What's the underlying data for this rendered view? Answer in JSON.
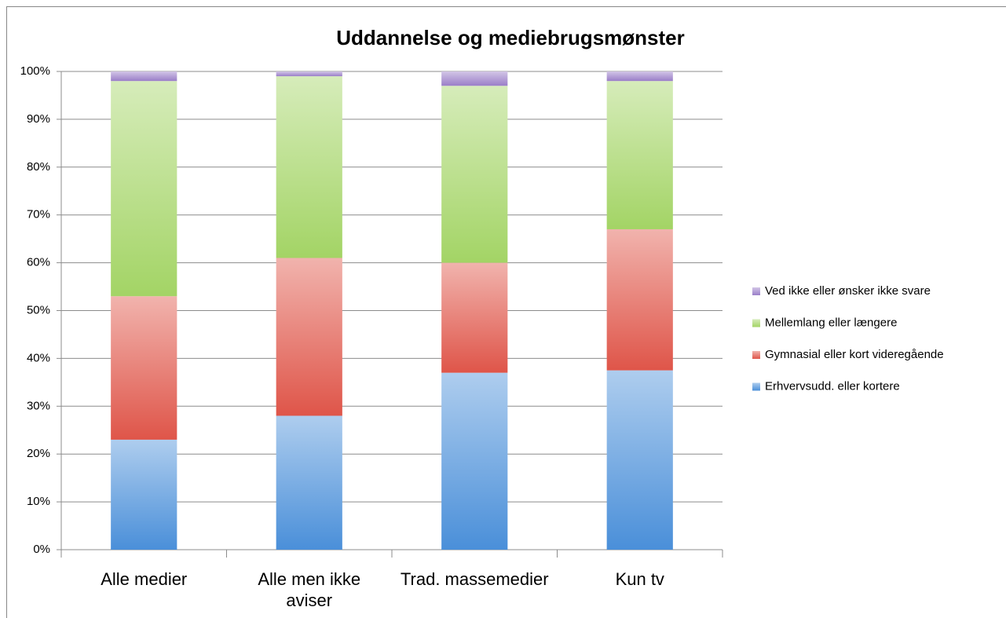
{
  "chart_data": {
    "type": "stacked_bar",
    "title": "Uddannelse og mediebrugsmønster",
    "categories": [
      "Alle medier",
      "Alle men ikke aviser",
      "Trad. massemedier",
      "Kun tv"
    ],
    "series": [
      {
        "name": "Erhvervsudd. eller kortere",
        "color": "#4a8fd9",
        "values": [
          23,
          28,
          37,
          37.5
        ]
      },
      {
        "name": "Gymnasial eller kort videregående",
        "color": "#df5549",
        "values": [
          30,
          33,
          23,
          29.5
        ]
      },
      {
        "name": "Mellemlang eller længere",
        "color": "#a3d465",
        "values": [
          45,
          38,
          37,
          31
        ]
      },
      {
        "name": "Ved ikke eller ønsker ikke svare",
        "color": "#9a7ec8",
        "values": [
          2,
          1,
          3,
          2
        ]
      }
    ],
    "ylim": [
      0,
      100
    ],
    "yticks": [
      {
        "value": 0,
        "label": "0%"
      },
      {
        "value": 10,
        "label": "10%"
      },
      {
        "value": 20,
        "label": "20%"
      },
      {
        "value": 30,
        "label": "30%"
      },
      {
        "value": 40,
        "label": "40%"
      },
      {
        "value": 50,
        "label": "50%"
      },
      {
        "value": 60,
        "label": "60%"
      },
      {
        "value": 70,
        "label": "70%"
      },
      {
        "value": 80,
        "label": "80%"
      },
      {
        "value": 90,
        "label": "90%"
      },
      {
        "value": 100,
        "label": "100%"
      }
    ],
    "grid": true,
    "legend": "right"
  }
}
